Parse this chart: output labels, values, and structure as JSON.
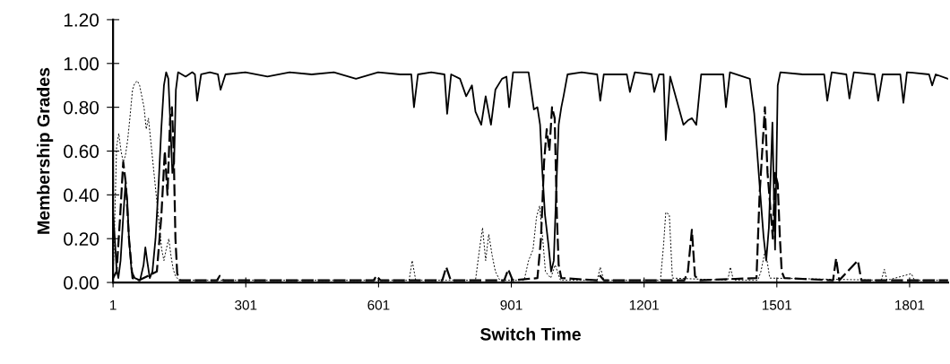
{
  "chart_data": {
    "type": "line",
    "xlabel": "Switch Time",
    "ylabel": "Membership Grades",
    "xlim": [
      1,
      1888
    ],
    "xticks": [
      1,
      301,
      601,
      901,
      1201,
      1501,
      1801
    ],
    "ylim": [
      0,
      1.2
    ],
    "yticks": [
      {
        "value": 0,
        "label": "0.00"
      },
      {
        "value": 0.2,
        "label": "0.20"
      },
      {
        "value": 0.4,
        "label": "0.40"
      },
      {
        "value": 0.6,
        "label": "0.60"
      },
      {
        "value": 0.8,
        "label": "0.80"
      },
      {
        "value": 1.0,
        "label": "1.00"
      },
      {
        "value": 1.2,
        "label": "1.20"
      }
    ],
    "series": [
      {
        "color": "#000000",
        "line_style": "solid",
        "x": [
          1,
          5,
          9,
          13,
          18,
          24,
          29,
          33,
          37,
          43,
          50,
          62,
          70,
          74,
          78,
          84,
          90,
          97,
          104,
          110,
          116,
          121,
          126,
          131,
          135,
          139,
          143,
          148,
          165,
          180,
          186,
          191,
          200,
          220,
          238,
          244,
          255,
          300,
          350,
          400,
          450,
          500,
          550,
          600,
          650,
          675,
          681,
          690,
          720,
          750,
          756,
          765,
          785,
          799,
          812,
          820,
          833,
          843,
          855,
          865,
          880,
          890,
          896,
          905,
          940,
          952,
          960,
          966,
          971,
          977,
          985,
          991,
          997,
          1003,
          1008,
          1014,
          1019,
          1028,
          1060,
          1095,
          1102,
          1110,
          1162,
          1169,
          1180,
          1218,
          1224,
          1235,
          1245,
          1250,
          1260,
          1290,
          1300,
          1309,
          1319,
          1330,
          1380,
          1386,
          1395,
          1440,
          1450,
          1456,
          1463,
          1471,
          1477,
          1483,
          1491,
          1497,
          1503,
          1509,
          1560,
          1608,
          1615,
          1625,
          1658,
          1665,
          1675,
          1722,
          1730,
          1740,
          1780,
          1787,
          1795,
          1845,
          1852,
          1860,
          1888
        ],
        "values": [
          0.32,
          0.2,
          0.06,
          0.02,
          0.1,
          0.3,
          0.45,
          0.38,
          0.2,
          0.05,
          0.02,
          0.01,
          0.08,
          0.16,
          0.1,
          0.02,
          0.05,
          0.2,
          0.45,
          0.7,
          0.9,
          0.96,
          0.93,
          0.7,
          0.5,
          0.55,
          0.88,
          0.96,
          0.94,
          0.96,
          0.95,
          0.83,
          0.95,
          0.96,
          0.95,
          0.88,
          0.95,
          0.96,
          0.94,
          0.96,
          0.95,
          0.96,
          0.93,
          0.96,
          0.95,
          0.95,
          0.8,
          0.95,
          0.96,
          0.95,
          0.77,
          0.95,
          0.93,
          0.85,
          0.9,
          0.78,
          0.72,
          0.85,
          0.72,
          0.88,
          0.93,
          0.94,
          0.8,
          0.96,
          0.96,
          0.79,
          0.8,
          0.72,
          0.51,
          0.31,
          0.17,
          0.05,
          0.1,
          0.45,
          0.72,
          0.8,
          0.85,
          0.95,
          0.96,
          0.95,
          0.83,
          0.95,
          0.95,
          0.87,
          0.96,
          0.95,
          0.87,
          0.95,
          0.95,
          0.65,
          0.94,
          0.72,
          0.74,
          0.75,
          0.72,
          0.95,
          0.95,
          0.8,
          0.96,
          0.93,
          0.77,
          0.61,
          0.42,
          0.21,
          0.1,
          0.25,
          0.73,
          0.15,
          0.9,
          0.96,
          0.95,
          0.95,
          0.83,
          0.96,
          0.95,
          0.84,
          0.96,
          0.95,
          0.83,
          0.95,
          0.95,
          0.82,
          0.96,
          0.95,
          0.9,
          0.95,
          0.93
        ]
      },
      {
        "color": "#000000",
        "line_style": "dashed",
        "x": [
          1,
          9,
          17,
          24,
          30,
          37,
          45,
          60,
          100,
          110,
          118,
          124,
          130,
          134,
          138,
          142,
          146,
          152,
          236,
          242,
          250,
          590,
          596,
          605,
          745,
          754,
          764,
          885,
          894,
          904,
          960,
          968,
          975,
          981,
          987,
          993,
          999,
          1004,
          1008,
          1014,
          1095,
          1102,
          1110,
          1292,
          1300,
          1309,
          1316,
          1325,
          1455,
          1462,
          1468,
          1474,
          1480,
          1486,
          1492,
          1497,
          1503,
          1508,
          1512,
          1518,
          1628,
          1635,
          1642,
          1670,
          1684,
          1692,
          1888
        ],
        "values": [
          0.02,
          0.05,
          0.3,
          0.55,
          0.45,
          0.2,
          0.02,
          0.01,
          0.05,
          0.3,
          0.6,
          0.4,
          0.75,
          0.8,
          0.6,
          0.2,
          0.04,
          0.01,
          0.01,
          0.03,
          0.01,
          0.01,
          0.03,
          0.01,
          0.01,
          0.07,
          0.01,
          0.01,
          0.06,
          0.01,
          0.02,
          0.2,
          0.55,
          0.7,
          0.6,
          0.8,
          0.75,
          0.3,
          0.08,
          0.02,
          0.01,
          0.03,
          0.01,
          0.01,
          0.05,
          0.24,
          0.03,
          0.01,
          0.02,
          0.4,
          0.6,
          0.8,
          0.5,
          0.35,
          0.2,
          0.5,
          0.45,
          0.2,
          0.05,
          0.02,
          0.01,
          0.11,
          0.01,
          0.07,
          0.1,
          0.01,
          0.01
        ]
      },
      {
        "color": "#000000",
        "line_style": "dotted",
        "x": [
          1,
          5,
          9,
          14,
          19,
          24,
          29,
          34,
          39,
          45,
          50,
          56,
          61,
          66,
          71,
          76,
          81,
          86,
          91,
          96,
          101,
          106,
          111,
          116,
          121,
          127,
          132,
          137,
          142,
          150,
          670,
          677,
          685,
          820,
          829,
          836,
          843,
          850,
          858,
          865,
          875,
          930,
          940,
          950,
          958,
          965,
          972,
          978,
          990,
          1000,
          1012,
          1095,
          1102,
          1110,
          1238,
          1245,
          1250,
          1258,
          1265,
          1390,
          1396,
          1403,
          1458,
          1465,
          1475,
          1485,
          1737,
          1744,
          1750,
          1805,
          1812,
          1888
        ],
        "values": [
          0.02,
          0.3,
          0.62,
          0.68,
          0.6,
          0.55,
          0.58,
          0.65,
          0.75,
          0.88,
          0.91,
          0.92,
          0.9,
          0.85,
          0.8,
          0.7,
          0.75,
          0.65,
          0.55,
          0.45,
          0.35,
          0.25,
          0.15,
          0.1,
          0.15,
          0.2,
          0.12,
          0.06,
          0.03,
          0.01,
          0.01,
          0.1,
          0.01,
          0.01,
          0.15,
          0.25,
          0.1,
          0.22,
          0.12,
          0.05,
          0.01,
          0.01,
          0.1,
          0.15,
          0.3,
          0.35,
          0.2,
          0.05,
          0.02,
          0.08,
          0.01,
          0.01,
          0.07,
          0.01,
          0.01,
          0.17,
          0.32,
          0.31,
          0.02,
          0.01,
          0.07,
          0.01,
          0.01,
          0.05,
          0.15,
          0.02,
          0.01,
          0.06,
          0.01,
          0.04,
          0.01,
          0.01
        ]
      }
    ]
  }
}
